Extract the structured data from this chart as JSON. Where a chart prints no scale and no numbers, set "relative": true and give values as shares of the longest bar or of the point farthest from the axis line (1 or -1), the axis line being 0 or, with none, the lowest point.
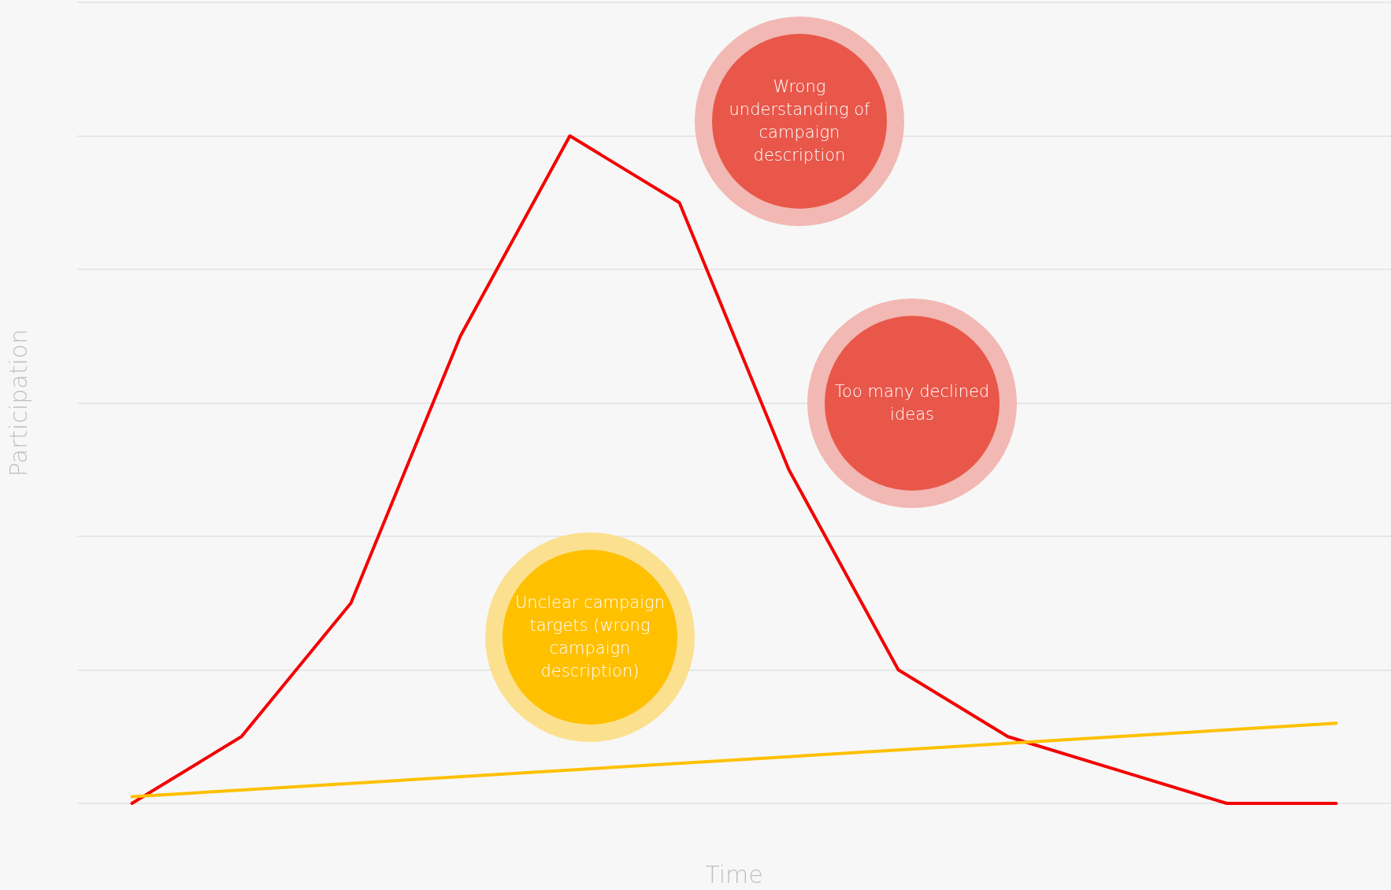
{
  "chart_data": {
    "type": "line",
    "relative": true,
    "xlabel": "Time",
    "ylabel": "Participation",
    "grid": "y",
    "marker": "none",
    "line_style": "solid",
    "categories": [
      null,
      null,
      null,
      null,
      null,
      null,
      null,
      null,
      null,
      null,
      null,
      null
    ],
    "series": [
      {
        "color": "#f40000",
        "values": [
          0,
          0.1,
          0.3,
          0.7,
          1,
          0.9,
          0.5,
          0.2,
          0.1,
          0.05,
          0,
          0
        ]
      },
      {
        "color": "#ffc000",
        "values": [
          0.01,
          null,
          null,
          null,
          null,
          null,
          null,
          null,
          null,
          null,
          null,
          0.12
        ]
      }
    ],
    "annotations": [
      "Wrong understanding of campaign description",
      "Too many declined ideas",
      "Unclear campaign targets (wrong campaign description)"
    ]
  }
}
